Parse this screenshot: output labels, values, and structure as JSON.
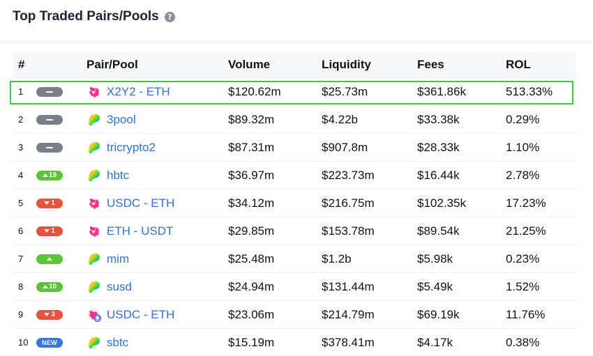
{
  "page": {
    "title": "Top Traded Pairs/Pools",
    "help_icon": "question-circle-icon"
  },
  "table": {
    "columns": [
      "#",
      "Pair/Pool",
      "Volume",
      "Liquidity",
      "Fees",
      "ROL"
    ],
    "rows": [
      {
        "rank": "1",
        "change": {
          "type": "same",
          "label": ""
        },
        "icon": "uniswap-icon",
        "pair": "X2Y2 - ETH",
        "volume": "$120.62m",
        "liquidity": "$25.73m",
        "fees": "$361.86k",
        "rol": "513.33%"
      },
      {
        "rank": "2",
        "change": {
          "type": "same",
          "label": ""
        },
        "icon": "curve-icon",
        "pair": "3pool",
        "volume": "$89.32m",
        "liquidity": "$4.22b",
        "fees": "$33.38k",
        "rol": "0.29%"
      },
      {
        "rank": "3",
        "change": {
          "type": "same",
          "label": ""
        },
        "icon": "curve-icon",
        "pair": "tricrypto2",
        "volume": "$87.31m",
        "liquidity": "$907.8m",
        "fees": "$28.33k",
        "rol": "1.10%"
      },
      {
        "rank": "4",
        "change": {
          "type": "up",
          "label": "19"
        },
        "icon": "curve-icon",
        "pair": "hbtc",
        "volume": "$36.97m",
        "liquidity": "$223.73m",
        "fees": "$16.44k",
        "rol": "2.78%"
      },
      {
        "rank": "5",
        "change": {
          "type": "down",
          "label": "1"
        },
        "icon": "uniswap-icon",
        "pair": "USDC - ETH",
        "volume": "$34.12m",
        "liquidity": "$216.75m",
        "fees": "$102.35k",
        "rol": "17.23%"
      },
      {
        "rank": "6",
        "change": {
          "type": "down",
          "label": "1"
        },
        "icon": "uniswap-icon",
        "pair": "ETH - USDT",
        "volume": "$29.85m",
        "liquidity": "$153.78m",
        "fees": "$89.54k",
        "rol": "21.25%"
      },
      {
        "rank": "7",
        "change": {
          "type": "up",
          "label": ""
        },
        "icon": "curve-icon",
        "pair": "mim",
        "volume": "$25.48m",
        "liquidity": "$1.2b",
        "fees": "$5.98k",
        "rol": "0.23%"
      },
      {
        "rank": "8",
        "change": {
          "type": "up",
          "label": "10"
        },
        "icon": "curve-icon",
        "pair": "susd",
        "volume": "$24.94m",
        "liquidity": "$131.44m",
        "fees": "$5.49k",
        "rol": "1.52%"
      },
      {
        "rank": "9",
        "change": {
          "type": "down",
          "label": "3"
        },
        "icon": "uniswap-v3-icon",
        "pair": "USDC - ETH",
        "volume": "$23.06m",
        "liquidity": "$214.79m",
        "fees": "$69.19k",
        "rol": "11.76%"
      },
      {
        "rank": "10",
        "change": {
          "type": "new",
          "label": "NEW"
        },
        "icon": "curve-icon",
        "pair": "sbtc",
        "volume": "$15.19m",
        "liquidity": "$378.41m",
        "fees": "$4.17k",
        "rol": "0.38%"
      }
    ]
  },
  "colors": {
    "link": "#2f73d8",
    "up": "#5dc437",
    "down": "#e8533f",
    "same": "#7b7f87",
    "new": "#3577e6",
    "highlight": "#2ed52e"
  }
}
